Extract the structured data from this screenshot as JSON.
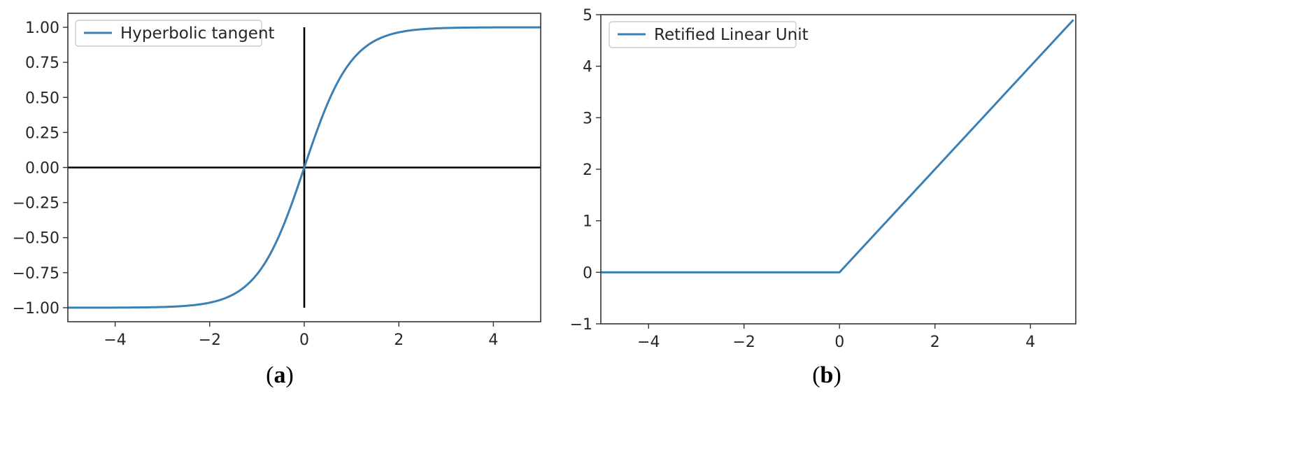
{
  "colors": {
    "series": "#3a80b4",
    "axes": "#333333",
    "reference_lines": "#000000",
    "legend_border": "#cccccc"
  },
  "chart_data": [
    {
      "type": "line",
      "title": "",
      "xlabel": "",
      "ylabel": "",
      "xlim": [
        -5,
        5
      ],
      "ylim": [
        -1.1,
        1.1
      ],
      "grid": false,
      "legend_placement": "top-left",
      "xticks": [
        -4,
        -2,
        0,
        2,
        4
      ],
      "xtick_labels": [
        "−4",
        "−2",
        "0",
        "2",
        "4"
      ],
      "yticks": [
        1,
        0.75,
        0.5,
        0.25,
        0,
        -0.25,
        -0.5,
        -0.75,
        -1
      ],
      "ytick_labels": [
        "1.00",
        "0.75",
        "0.50",
        "0.25",
        "0.00",
        "−0.25",
        "−0.50",
        "−0.75",
        "−1.00"
      ],
      "series": [
        {
          "name": "Hyperbolic tangent",
          "x": [
            -5,
            -4,
            -3,
            -2.5,
            -2,
            -1.5,
            -1.25,
            -1,
            -0.75,
            -0.5,
            -0.25,
            0,
            0.25,
            0.5,
            0.75,
            1,
            1.25,
            1.5,
            2,
            2.5,
            3,
            4,
            5
          ],
          "y": [
            -1.0,
            -0.999,
            -0.995,
            -0.987,
            -0.964,
            -0.905,
            -0.848,
            -0.762,
            -0.635,
            -0.462,
            -0.245,
            0.0,
            0.245,
            0.462,
            0.635,
            0.762,
            0.848,
            0.905,
            0.964,
            0.987,
            0.995,
            0.999,
            1.0
          ]
        }
      ],
      "reference_lines": [
        {
          "orientation": "horizontal",
          "y": 0,
          "x_range": [
            -5,
            5
          ]
        },
        {
          "orientation": "vertical",
          "x": 0,
          "y_range": [
            -1,
            1
          ]
        }
      ],
      "caption": "(a)"
    },
    {
      "type": "line",
      "title": "",
      "xlabel": "",
      "ylabel": "",
      "xlim": [
        -5,
        4.95
      ],
      "ylim": [
        -1,
        5
      ],
      "grid": false,
      "legend_placement": "top-left",
      "xticks": [
        -4,
        -2,
        0,
        2,
        4
      ],
      "xtick_labels": [
        "−4",
        "−2",
        "0",
        "2",
        "4"
      ],
      "yticks": [
        5,
        4,
        3,
        2,
        1,
        0,
        -1
      ],
      "ytick_labels": [
        "5",
        "4",
        "3",
        "2",
        "1",
        "0",
        "−1"
      ],
      "series": [
        {
          "name": "Retified Linear Unit",
          "x": [
            -5,
            0,
            4.9
          ],
          "y": [
            0,
            0,
            4.9
          ]
        }
      ],
      "reference_lines": [],
      "caption": "(b)"
    }
  ]
}
